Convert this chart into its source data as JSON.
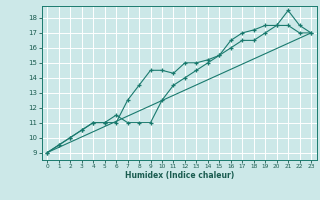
{
  "xlabel": "Humidex (Indice chaleur)",
  "xlim": [
    -0.5,
    23.5
  ],
  "ylim": [
    8.5,
    18.8
  ],
  "xticks": [
    0,
    1,
    2,
    3,
    4,
    5,
    6,
    7,
    8,
    9,
    10,
    11,
    12,
    13,
    14,
    15,
    16,
    17,
    18,
    19,
    20,
    21,
    22,
    23
  ],
  "yticks": [
    9,
    10,
    11,
    12,
    13,
    14,
    15,
    16,
    17,
    18
  ],
  "bg_color": "#cce8e8",
  "line_color": "#1a7a6e",
  "grid_color": "#ffffff",
  "line1_x": [
    0,
    1,
    2,
    3,
    4,
    5,
    6,
    7,
    8,
    9,
    10,
    11,
    12,
    13,
    14,
    15,
    16,
    17,
    18,
    19,
    20,
    21,
    22,
    23
  ],
  "line1_y": [
    9.0,
    9.5,
    10.0,
    10.5,
    11.0,
    11.0,
    11.0,
    12.5,
    13.5,
    14.5,
    14.5,
    14.3,
    15.0,
    15.0,
    15.2,
    15.5,
    16.5,
    17.0,
    17.2,
    17.5,
    17.5,
    18.5,
    17.5,
    17.0
  ],
  "line2_x": [
    0,
    1,
    2,
    3,
    4,
    5,
    6,
    7,
    8,
    9,
    10,
    11,
    12,
    13,
    14,
    15,
    16,
    17,
    18,
    19,
    20,
    21,
    22,
    23
  ],
  "line2_y": [
    9.0,
    9.5,
    10.0,
    10.5,
    11.0,
    11.0,
    11.5,
    11.0,
    11.0,
    11.0,
    12.5,
    13.5,
    14.0,
    14.5,
    15.0,
    15.5,
    16.0,
    16.5,
    16.5,
    17.0,
    17.5,
    17.5,
    17.0,
    17.0
  ],
  "line3_x": [
    0,
    23
  ],
  "line3_y": [
    9.0,
    17.0
  ]
}
